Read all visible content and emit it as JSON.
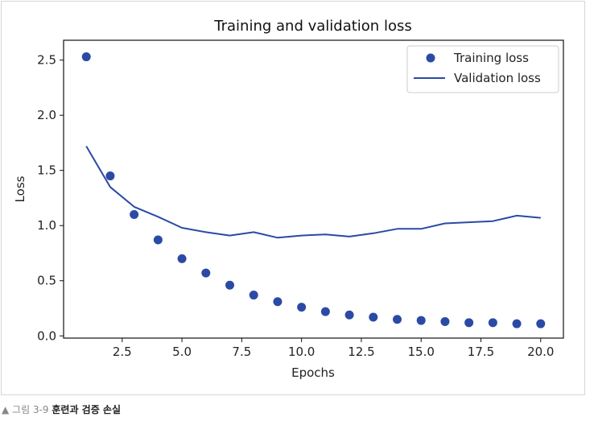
{
  "chart_data": {
    "type": "line",
    "title": "Training and validation loss",
    "xlabel": "Epochs",
    "ylabel": "Loss",
    "xlim": [
      0.05,
      20.95
    ],
    "ylim": [
      -0.02,
      2.68
    ],
    "xticks": [
      2.5,
      5.0,
      7.5,
      10.0,
      12.5,
      15.0,
      17.5,
      20.0
    ],
    "xtick_labels": [
      "2.5",
      "5.0",
      "7.5",
      "10.0",
      "12.5",
      "15.0",
      "17.5",
      "20.0"
    ],
    "yticks": [
      0.0,
      0.5,
      1.0,
      1.5,
      2.0,
      2.5
    ],
    "ytick_labels": [
      "0.0",
      "0.5",
      "1.0",
      "1.5",
      "2.0",
      "2.5"
    ],
    "x": [
      1,
      2,
      3,
      4,
      5,
      6,
      7,
      8,
      9,
      10,
      11,
      12,
      13,
      14,
      15,
      16,
      17,
      18,
      19,
      20
    ],
    "series": [
      {
        "name": "Training loss",
        "style": "points",
        "color": "#2a4aa5",
        "values": [
          2.53,
          1.45,
          1.1,
          0.87,
          0.7,
          0.57,
          0.46,
          0.37,
          0.31,
          0.26,
          0.22,
          0.19,
          0.17,
          0.15,
          0.14,
          0.13,
          0.12,
          0.12,
          0.11,
          0.11
        ]
      },
      {
        "name": "Validation loss",
        "style": "line",
        "color": "#2a4aa5",
        "values": [
          1.72,
          1.35,
          1.17,
          1.08,
          0.98,
          0.94,
          0.91,
          0.94,
          0.89,
          0.91,
          0.92,
          0.9,
          0.93,
          0.97,
          0.97,
          1.02,
          1.03,
          1.04,
          1.09,
          1.07
        ]
      }
    ],
    "legend_position": "top-right",
    "grid": false
  },
  "caption": {
    "prefix": "▲ 그림 3-9",
    "title": "훈련과 검증 손실"
  }
}
